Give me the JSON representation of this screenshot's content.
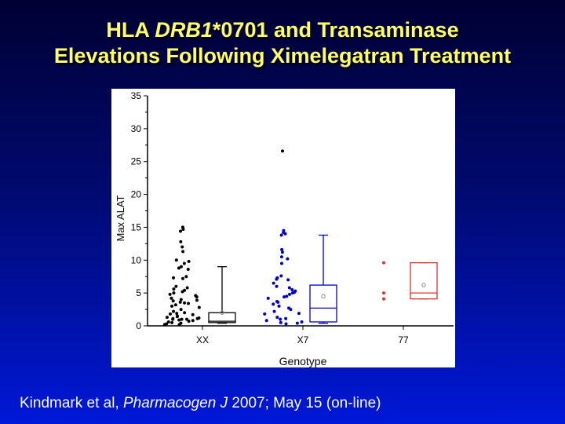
{
  "title": {
    "line1_prefix": "HLA ",
    "line1_italic": "DRB1",
    "line1_suffix": "*0701 and Transaminase",
    "line2": "Elevations Following Ximelegatran Treatment"
  },
  "footer": {
    "prefix": "Kindmark et al, ",
    "journal": "Pharmacogen J",
    "suffix": " 2007; May 15 (on-line)"
  },
  "colors": {
    "title": "#ffff66",
    "XX": "#000000",
    "X7": "#0000cc",
    "77": "#dd3333"
  },
  "chart_data": {
    "type": "box-scatter",
    "xlabel": "Genotype",
    "ylabel": "Max ALAT",
    "ylim": [
      0,
      35
    ],
    "yticks": [
      0,
      5,
      10,
      15,
      20,
      25,
      30,
      35
    ],
    "categories": [
      "XX",
      "X7",
      "77"
    ],
    "grid": false,
    "groups": [
      {
        "category": "XX",
        "color": "#000000",
        "points": [
          15,
          14.7,
          14.4,
          12.8,
          12,
          11.3,
          10,
          9.8,
          9.5,
          9,
          8.8,
          8.6,
          7.5,
          7.3,
          7.2,
          6,
          5.8,
          5.6,
          5.4,
          5.2,
          5,
          4.8,
          4.6,
          4.4,
          4.2,
          4,
          3.9,
          3.8,
          3.6,
          3.5,
          3.4,
          3.2,
          3,
          2.8,
          2.5,
          2.2,
          2,
          1.9,
          1.8,
          1.7,
          1.5,
          1.4,
          1.3,
          1.2,
          1.1,
          1.1,
          1,
          1,
          1,
          0.9,
          0.8,
          0.7,
          0.6,
          0.5,
          0.4,
          0.3,
          0.2,
          0.2
        ],
        "box": {
          "min": 0.4,
          "q1": 0.5,
          "median": 0.7,
          "q3": 2.0,
          "max": 9.0,
          "mean": 2.0
        }
      },
      {
        "category": "X7",
        "color": "#0000cc",
        "points": [
          14.5,
          14.2,
          14,
          13.8,
          11.6,
          11.2,
          10.5,
          10.2,
          9.5,
          7.6,
          7.3,
          7.1,
          7,
          6.5,
          6,
          5.8,
          5.5,
          5.3,
          5.1,
          5,
          4.8,
          4.5,
          4.4,
          4.2,
          3.7,
          3.6,
          3.3,
          3,
          2.7,
          2.5,
          2.2,
          1.9,
          1.8,
          1.3,
          1.1,
          1,
          0.8,
          0.6,
          0.5,
          0.4,
          0.3
        ],
        "outliers": [
          26.6
        ],
        "box": {
          "min": 0.4,
          "q1": 0.6,
          "median": 2.7,
          "q3": 6.2,
          "max": 13.8,
          "mean": 4.5
        }
      },
      {
        "category": "77",
        "color": "#dd3333",
        "points": [
          9.6,
          5.0,
          4.1
        ],
        "box": {
          "min": 4.1,
          "q1": 4.1,
          "median": 5.0,
          "q3": 9.6,
          "max": 9.6,
          "mean": 6.2
        }
      }
    ]
  }
}
